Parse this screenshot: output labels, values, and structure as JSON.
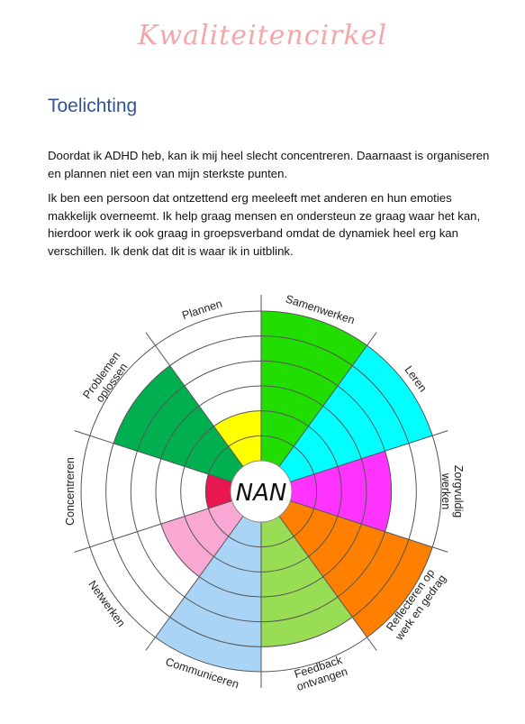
{
  "document": {
    "title": "Kwaliteitencirkel",
    "heading": "Toelichting",
    "paragraphs": [
      "Doordat ik ADHD heb, kan ik mij heel slecht concentreren. Daarnaast is organiseren en plannen niet een van mijn sterkste punten.",
      "Ik ben een persoon dat ontzettend erg meeleeft met anderen en hun emoties makkelijk overneemt. Ik help graag mensen en ondersteun ze graag waar het kan, hierdoor werk ik ook graag in groepsverband omdat de dynamiek heel erg kan verschillen. Ik denk dat dit is waar ik in uitblink."
    ]
  },
  "wheel": {
    "center_name": "NAN",
    "rings": 6,
    "segments": [
      {
        "name": "Samenwerken",
        "label_lines": [
          "Samenwerken"
        ],
        "level": 6,
        "color": "#22dd00"
      },
      {
        "name": "Leren",
        "label_lines": [
          "Leren"
        ],
        "level": 6,
        "color": "#00ffff"
      },
      {
        "name": "Zorgvuldig werken",
        "label_lines": [
          "Zorgvuldig",
          "werken"
        ],
        "level": 4,
        "color": "#ff33ff"
      },
      {
        "name": "Reflecteren op werk en gedrag",
        "label_lines": [
          "Reflecteren op",
          "werk en gedrag"
        ],
        "level": 6,
        "color": "#ff7f00"
      },
      {
        "name": "Feedback ontvangen",
        "label_lines": [
          "Feedback",
          "ontvangen"
        ],
        "level": 5,
        "color": "#99dd55"
      },
      {
        "name": "Communiceren",
        "label_lines": [
          "Communiceren"
        ],
        "level": 6,
        "color": "#aad4f5"
      },
      {
        "name": "Netwerken",
        "label_lines": [
          "Netwerken"
        ],
        "level": 3,
        "color": "#f9a8d4"
      },
      {
        "name": "Concentreren",
        "label_lines": [
          "Concentreren"
        ],
        "level": 1,
        "color": "#e8174f"
      },
      {
        "name": "Problemen oplossen",
        "label_lines": [
          "Problemen",
          "oplossen"
        ],
        "level": 5,
        "color": "#00b050"
      },
      {
        "name": "Plannen",
        "label_lines": [
          "Plannen"
        ],
        "level": 2,
        "color": "#ffff00"
      }
    ]
  }
}
